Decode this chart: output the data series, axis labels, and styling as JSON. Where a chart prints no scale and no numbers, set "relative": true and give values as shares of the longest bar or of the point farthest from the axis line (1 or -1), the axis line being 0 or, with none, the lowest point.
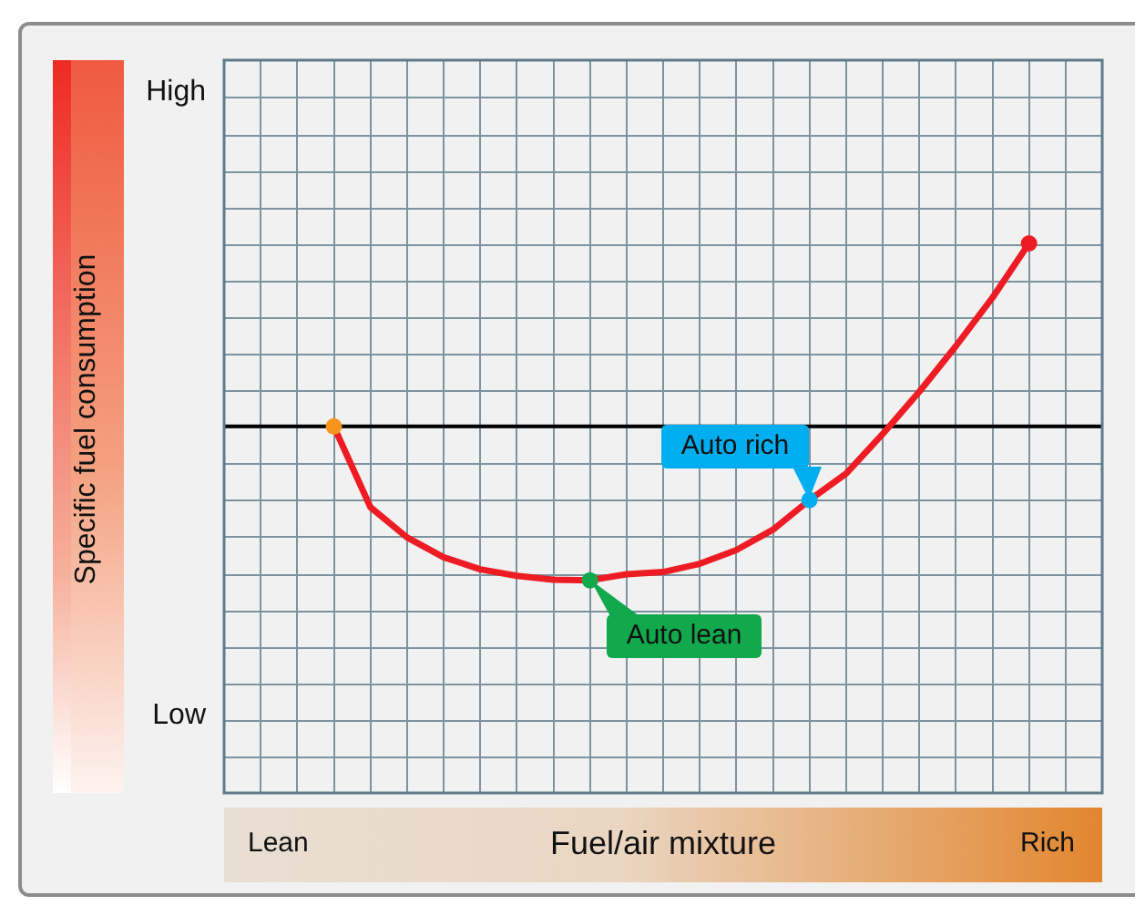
{
  "chart_data": {
    "type": "line",
    "relative": true,
    "ylabel": "Specific fuel consumption",
    "xlabel": "Fuel/air mixture",
    "categories": [
      null,
      null,
      null,
      null,
      null,
      null,
      null,
      null,
      null,
      null,
      null,
      null,
      null,
      null,
      null,
      null,
      null,
      null,
      null,
      null,
      null,
      null,
      null,
      null,
      null
    ],
    "series": [
      {
        "color": "#ed1c24",
        "values": [
          null,
          null,
          null,
          0.667,
          0.52,
          0.465,
          0.429,
          0.407,
          0.395,
          0.388,
          0.387,
          0.398,
          0.402,
          0.417,
          0.442,
          0.479,
          0.533,
          0.581,
          0.653,
          0.73,
          0.813,
          0.901,
          1,
          null,
          null
        ],
        "colors": [
          null,
          null,
          null,
          "#f7941d",
          null,
          null,
          null,
          null,
          null,
          null,
          "#12a84c",
          null,
          null,
          null,
          null,
          null,
          "#00aeef",
          null,
          null,
          null,
          null,
          null,
          "#ed1c24",
          null,
          null
        ]
      }
    ],
    "ref_lines": [
      {
        "axis": "y",
        "value": 0.667,
        "color": "#000000"
      }
    ],
    "annotations": [
      "High",
      "Low",
      "Lean",
      "Rich",
      "Auto lean",
      "Auto rich"
    ],
    "grid": true,
    "line_style": "solid"
  }
}
